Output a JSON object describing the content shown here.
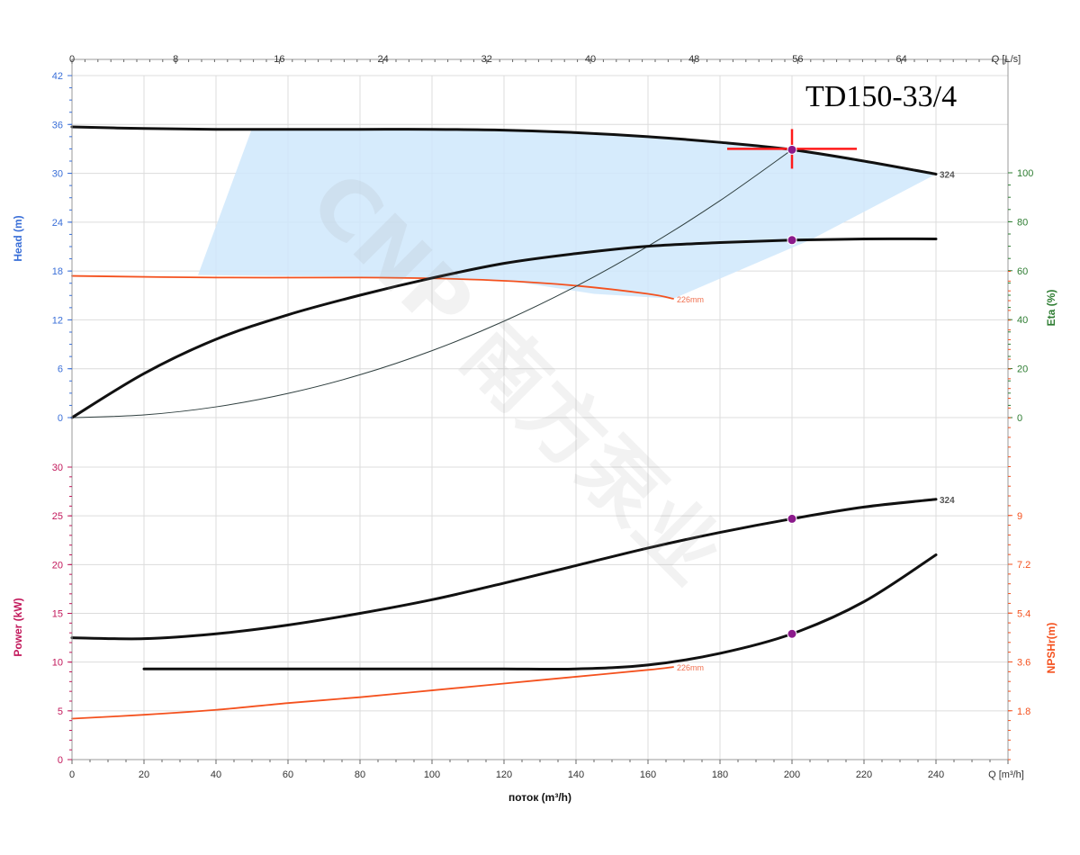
{
  "chart_data": {
    "type": "line",
    "title": "TD150-33/4",
    "watermark": "CNP 南方泵业",
    "x_axis": {
      "label": "поток (m³/h)",
      "unit_label": "Q [m³/h]",
      "range": [
        0,
        260
      ],
      "ticks": [
        "0",
        "20",
        "40",
        "60",
        "80",
        "100",
        "120",
        "140",
        "160",
        "180",
        "200",
        "220",
        "240"
      ]
    },
    "top_axis": {
      "unit_label": "Q [L/s]",
      "ticks": [
        "0",
        "8",
        "16",
        "24",
        "32",
        "40",
        "48",
        "56",
        "64"
      ]
    },
    "axes": {
      "head": {
        "label": "Head (m)",
        "range": [
          0,
          42
        ],
        "ticks": [
          "0",
          "6",
          "12",
          "18",
          "24",
          "30",
          "36",
          "42"
        ],
        "color": "#3a6fd8"
      },
      "eta": {
        "label": "Eta (%)",
        "range": [
          0,
          100
        ],
        "ticks": [
          "0",
          "20",
          "40",
          "60",
          "80",
          "100"
        ],
        "color": "#2e7d32"
      },
      "power": {
        "label": "Power (kW)",
        "range": [
          0,
          35
        ],
        "ticks": [
          "0",
          "5",
          "10",
          "15",
          "20",
          "25",
          "30"
        ],
        "color": "#c2185b"
      },
      "npsh": {
        "label": "NPSHr(m)",
        "ticks": [
          "1.8",
          "3.6",
          "5.4",
          "7.2",
          "9"
        ],
        "color": "#f4511e"
      }
    },
    "series": [
      {
        "name": "324",
        "kind": "head",
        "color": "#111111",
        "x": [
          0,
          20,
          40,
          60,
          80,
          100,
          120,
          140,
          160,
          180,
          200,
          220,
          240
        ],
        "y": [
          35.7,
          35.5,
          35.4,
          35.4,
          35.4,
          35.4,
          35.3,
          35.0,
          34.5,
          33.8,
          32.9,
          31.5,
          29.9
        ]
      },
      {
        "name": "226mm",
        "kind": "head",
        "color": "#f4511e",
        "x": [
          0,
          40,
          80,
          100,
          120,
          140,
          160,
          167
        ],
        "y": [
          17.4,
          17.2,
          17.2,
          17.1,
          16.8,
          16.2,
          15.2,
          14.6
        ]
      },
      {
        "name": "",
        "kind": "system",
        "color": "#2f3f3f",
        "x": [
          0,
          20,
          40,
          60,
          80,
          100,
          120,
          140,
          160,
          180,
          200
        ],
        "y": [
          0,
          0.33,
          1.32,
          2.97,
          5.26,
          8.22,
          11.84,
          16.12,
          21.05,
          26.64,
          32.9
        ]
      },
      {
        "name": "",
        "kind": "eta",
        "color": "#111111",
        "x": [
          0,
          20,
          40,
          60,
          80,
          100,
          120,
          140,
          160,
          180,
          200,
          220,
          240
        ],
        "y": [
          0,
          18,
          32,
          42,
          50,
          57,
          63,
          67,
          70,
          71.5,
          72.5,
          73,
          73
        ]
      },
      {
        "name": "324",
        "kind": "power",
        "color": "#111111",
        "x": [
          0,
          20,
          40,
          60,
          80,
          100,
          120,
          140,
          160,
          180,
          200,
          220,
          240
        ],
        "y": [
          12.5,
          12.4,
          12.9,
          13.8,
          15.0,
          16.4,
          18.1,
          19.9,
          21.7,
          23.3,
          24.7,
          25.9,
          26.7
        ]
      },
      {
        "name": "226mm",
        "kind": "power",
        "color": "#f4511e",
        "x": [
          0,
          20,
          40,
          60,
          80,
          100,
          120,
          140,
          160,
          167
        ],
        "y": [
          4.2,
          4.6,
          5.1,
          5.8,
          6.4,
          7.1,
          7.8,
          8.5,
          9.2,
          9.5
        ]
      },
      {
        "name": "",
        "kind": "npsh",
        "color": "#111111",
        "x": [
          20,
          40,
          60,
          80,
          100,
          120,
          140,
          160,
          180,
          200,
          220,
          240
        ],
        "y": [
          9.3,
          9.3,
          9.3,
          9.3,
          9.3,
          9.3,
          9.3,
          9.7,
          10.9,
          12.9,
          16.2,
          21.0
        ]
      }
    ],
    "operating_points": [
      {
        "kind": "head",
        "x": 200,
        "y": 32.9
      },
      {
        "kind": "eta",
        "x": 200,
        "y": 72.5
      },
      {
        "kind": "power",
        "x": 200,
        "y": 24.7
      },
      {
        "kind": "npsh",
        "x": 200,
        "y": 12.9
      }
    ],
    "duty_point": {
      "x": 200,
      "y": 33
    },
    "operating_range": {
      "color": "#cfe8fb",
      "polygon": [
        [
          35,
          17.5
        ],
        [
          50,
          35.5
        ],
        [
          90,
          35.4
        ],
        [
          120,
          35.3
        ],
        [
          160,
          34.4
        ],
        [
          200,
          32.9
        ],
        [
          240,
          29.9
        ],
        [
          205,
          21.8
        ],
        [
          167,
          14.6
        ],
        [
          145,
          15.2
        ],
        [
          120,
          16.9
        ],
        [
          80,
          17.3
        ],
        [
          35,
          17.5
        ]
      ]
    },
    "grid": true
  }
}
